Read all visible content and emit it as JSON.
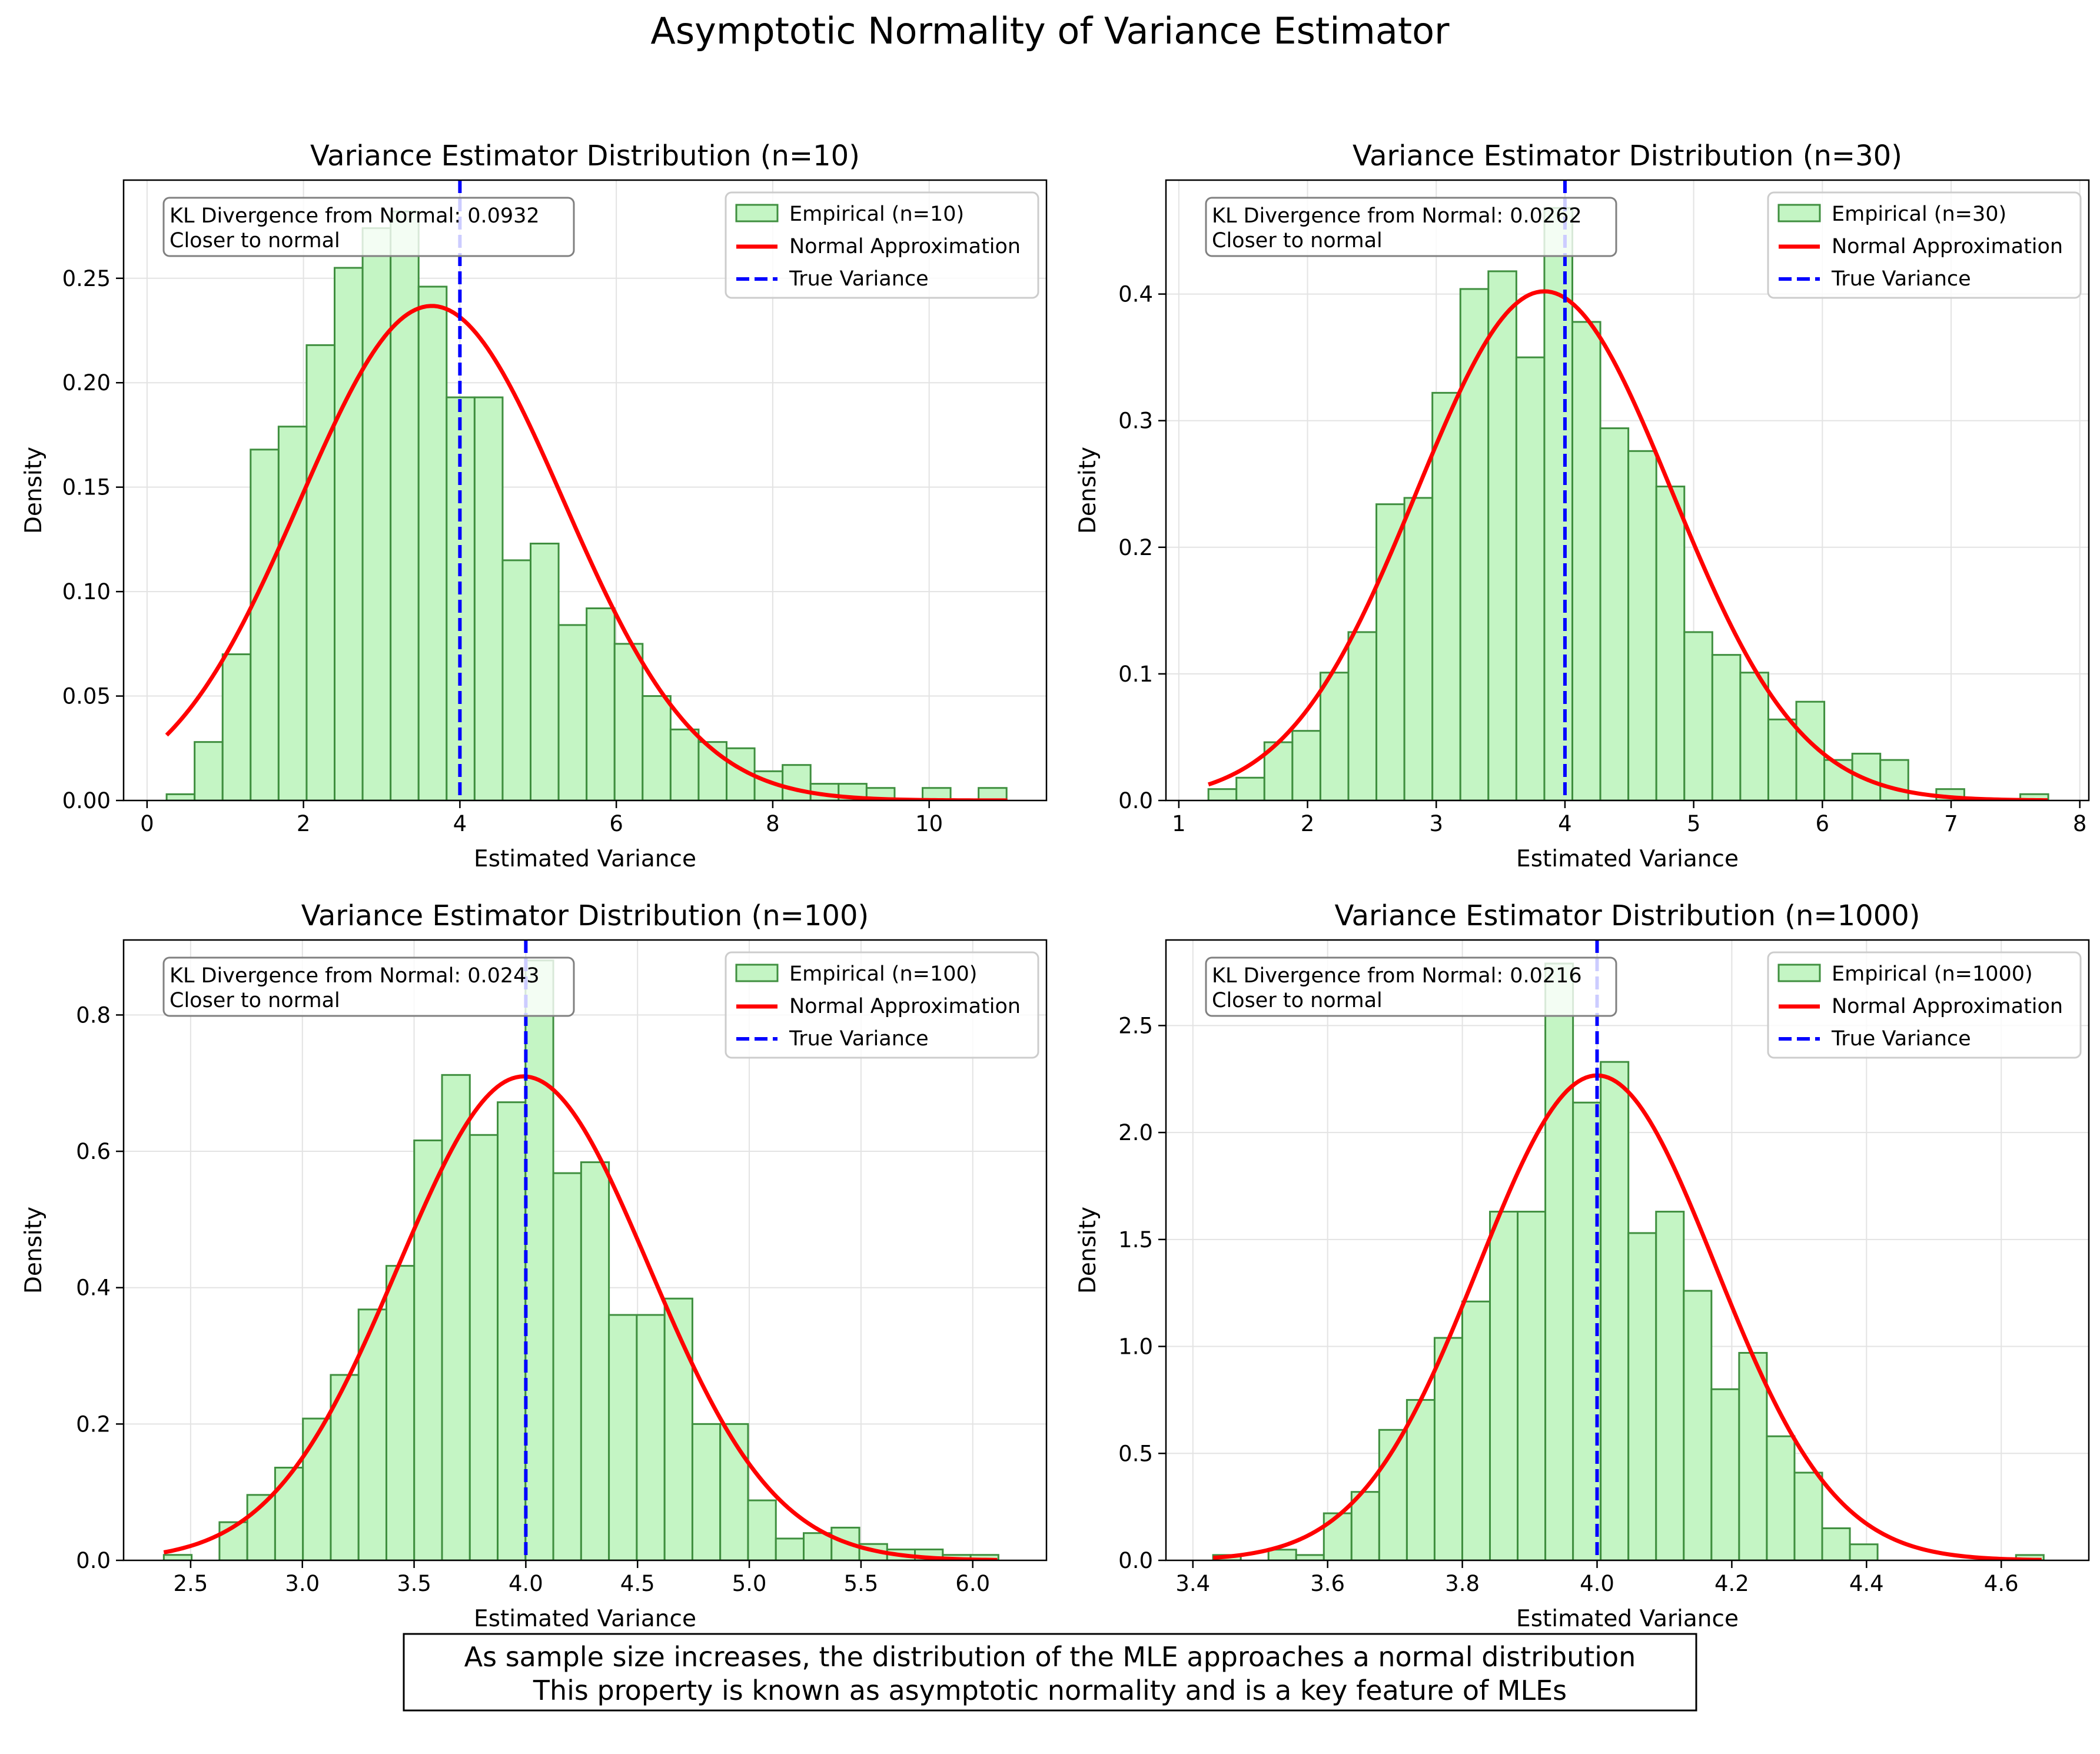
{
  "figure": {
    "suptitle": "Asymptotic Normality of Variance Estimator",
    "caption_lines": [
      "As sample size increases, the distribution of the MLE approaches a normal distribution",
      "This property is known as asymptotic normality and is a key feature of MLEs"
    ]
  },
  "colors": {
    "hist_fill": "#c4f5c4",
    "hist_edge": "#3f8f3f",
    "normal_line": "#ff0000",
    "true_line": "#0000ff",
    "grid": "#e3e3e3"
  },
  "chart_data": [
    {
      "type": "bar",
      "title": "Variance Estimator Distribution (n=10)",
      "xlabel": "Estimated Variance",
      "ylabel": "Density",
      "xlim": [
        -0.3,
        11.5
      ],
      "ylim": [
        0,
        0.297
      ],
      "xticks": [
        0,
        2,
        4,
        6,
        8,
        10
      ],
      "xtick_labels": [
        "0",
        "2",
        "4",
        "6",
        "8",
        "10"
      ],
      "yticks": [
        0.0,
        0.05,
        0.1,
        0.15,
        0.2,
        0.25
      ],
      "ytick_labels": [
        "0.00",
        "0.05",
        "0.10",
        "0.15",
        "0.20",
        "0.25"
      ],
      "grid": true,
      "legend_position": "top-right",
      "bins_start": 0.25,
      "bin_width": 0.358,
      "values": [
        0.003,
        0.028,
        0.07,
        0.168,
        0.179,
        0.218,
        0.255,
        0.274,
        0.282,
        0.246,
        0.193,
        0.193,
        0.115,
        0.123,
        0.084,
        0.092,
        0.075,
        0.05,
        0.034,
        0.028,
        0.025,
        0.014,
        0.017,
        0.008,
        0.008,
        0.006,
        0.0,
        0.006,
        0.0,
        0.006
      ],
      "normal": {
        "mean": 3.64,
        "sd": 1.685,
        "x_start": 0.25,
        "x_end": 11.0
      },
      "true_variance": 4,
      "series": [
        {
          "name": "Empirical (n=10)"
        },
        {
          "name": "Normal Approximation"
        },
        {
          "name": "True Variance"
        }
      ],
      "annotation_lines": [
        "KL Divergence from Normal: 0.0932",
        "Closer to normal"
      ]
    },
    {
      "type": "bar",
      "title": "Variance Estimator Distribution (n=30)",
      "xlabel": "Estimated Variance",
      "ylabel": "Density",
      "xlim": [
        0.9,
        8.07
      ],
      "ylim": [
        0,
        0.49
      ],
      "xticks": [
        1,
        2,
        3,
        4,
        5,
        6,
        7,
        8
      ],
      "xtick_labels": [
        "1",
        "2",
        "3",
        "4",
        "5",
        "6",
        "7",
        "8"
      ],
      "yticks": [
        0.0,
        0.1,
        0.2,
        0.3,
        0.4
      ],
      "ytick_labels": [
        "0.0",
        "0.1",
        "0.2",
        "0.3",
        "0.4"
      ],
      "grid": true,
      "legend_position": "top-right",
      "bins_start": 1.23,
      "bin_width": 0.2175,
      "values": [
        0.009,
        0.018,
        0.046,
        0.055,
        0.101,
        0.133,
        0.234,
        0.239,
        0.322,
        0.404,
        0.418,
        0.35,
        0.468,
        0.378,
        0.294,
        0.276,
        0.248,
        0.133,
        0.115,
        0.101,
        0.064,
        0.078,
        0.032,
        0.037,
        0.032,
        0.0,
        0.009,
        0.0,
        0.0,
        0.005
      ],
      "normal": {
        "mean": 3.84,
        "sd": 0.992,
        "x_start": 1.23,
        "x_end": 7.75
      },
      "true_variance": 4,
      "series": [
        {
          "name": "Empirical (n=30)"
        },
        {
          "name": "Normal Approximation"
        },
        {
          "name": "True Variance"
        }
      ],
      "annotation_lines": [
        "KL Divergence from Normal: 0.0262",
        "Closer to normal"
      ]
    },
    {
      "type": "bar",
      "title": "Variance Estimator Distribution (n=100)",
      "xlabel": "Estimated Variance",
      "ylabel": "Density",
      "xlim": [
        2.2,
        6.33
      ],
      "ylim": [
        0,
        0.91
      ],
      "xticks": [
        2.5,
        3.0,
        3.5,
        4.0,
        4.5,
        5.0,
        5.5,
        6.0
      ],
      "xtick_labels": [
        "2.5",
        "3.0",
        "3.5",
        "4.0",
        "4.5",
        "5.0",
        "5.5",
        "6.0"
      ],
      "yticks": [
        0.0,
        0.2,
        0.4,
        0.6,
        0.8
      ],
      "ytick_labels": [
        "0.0",
        "0.2",
        "0.4",
        "0.6",
        "0.8"
      ],
      "grid": true,
      "legend_position": "top-right",
      "bins_start": 2.38,
      "bin_width": 0.1245,
      "values": [
        0.008,
        0.0,
        0.056,
        0.096,
        0.136,
        0.208,
        0.272,
        0.368,
        0.432,
        0.616,
        0.712,
        0.624,
        0.672,
        0.88,
        0.568,
        0.584,
        0.36,
        0.36,
        0.384,
        0.2,
        0.2,
        0.088,
        0.032,
        0.04,
        0.048,
        0.024,
        0.016,
        0.016,
        0.008,
        0.008
      ],
      "normal": {
        "mean": 3.99,
        "sd": 0.562,
        "x_start": 2.38,
        "x_end": 6.11
      },
      "true_variance": 4,
      "series": [
        {
          "name": "Empirical (n=100)"
        },
        {
          "name": "Normal Approximation"
        },
        {
          "name": "True Variance"
        }
      ],
      "annotation_lines": [
        "KL Divergence from Normal: 0.0243",
        "Closer to normal"
      ]
    },
    {
      "type": "bar",
      "title": "Variance Estimator Distribution (n=1000)",
      "xlabel": "Estimated Variance",
      "ylabel": "Density",
      "xlim": [
        3.36,
        4.73
      ],
      "ylim": [
        0,
        2.9
      ],
      "xticks": [
        3.4,
        3.6,
        3.8,
        4.0,
        4.2,
        4.4,
        4.6
      ],
      "xtick_labels": [
        "3.4",
        "3.6",
        "3.8",
        "4.0",
        "4.2",
        "4.4",
        "4.6"
      ],
      "yticks": [
        0.0,
        0.5,
        1.0,
        1.5,
        2.0,
        2.5
      ],
      "ytick_labels": [
        "0.0",
        "0.5",
        "1.0",
        "1.5",
        "2.0",
        "2.5"
      ],
      "grid": true,
      "legend_position": "top-right",
      "bins_start": 3.43,
      "bin_width": 0.0411,
      "values": [
        0.025,
        0.0,
        0.05,
        0.025,
        0.22,
        0.32,
        0.61,
        0.75,
        1.04,
        1.21,
        1.63,
        1.63,
        2.79,
        2.14,
        2.33,
        1.53,
        1.63,
        1.26,
        0.8,
        0.97,
        0.58,
        0.41,
        0.15,
        0.075,
        0.0,
        0.0,
        0.0,
        0.0,
        0.0,
        0.025
      ],
      "normal": {
        "mean": 4.0,
        "sd": 0.176,
        "x_start": 3.43,
        "x_end": 4.66
      },
      "true_variance": 4,
      "series": [
        {
          "name": "Empirical (n=1000)"
        },
        {
          "name": "Normal Approximation"
        },
        {
          "name": "True Variance"
        }
      ],
      "annotation_lines": [
        "KL Divergence from Normal: 0.0216",
        "Closer to normal"
      ]
    }
  ]
}
